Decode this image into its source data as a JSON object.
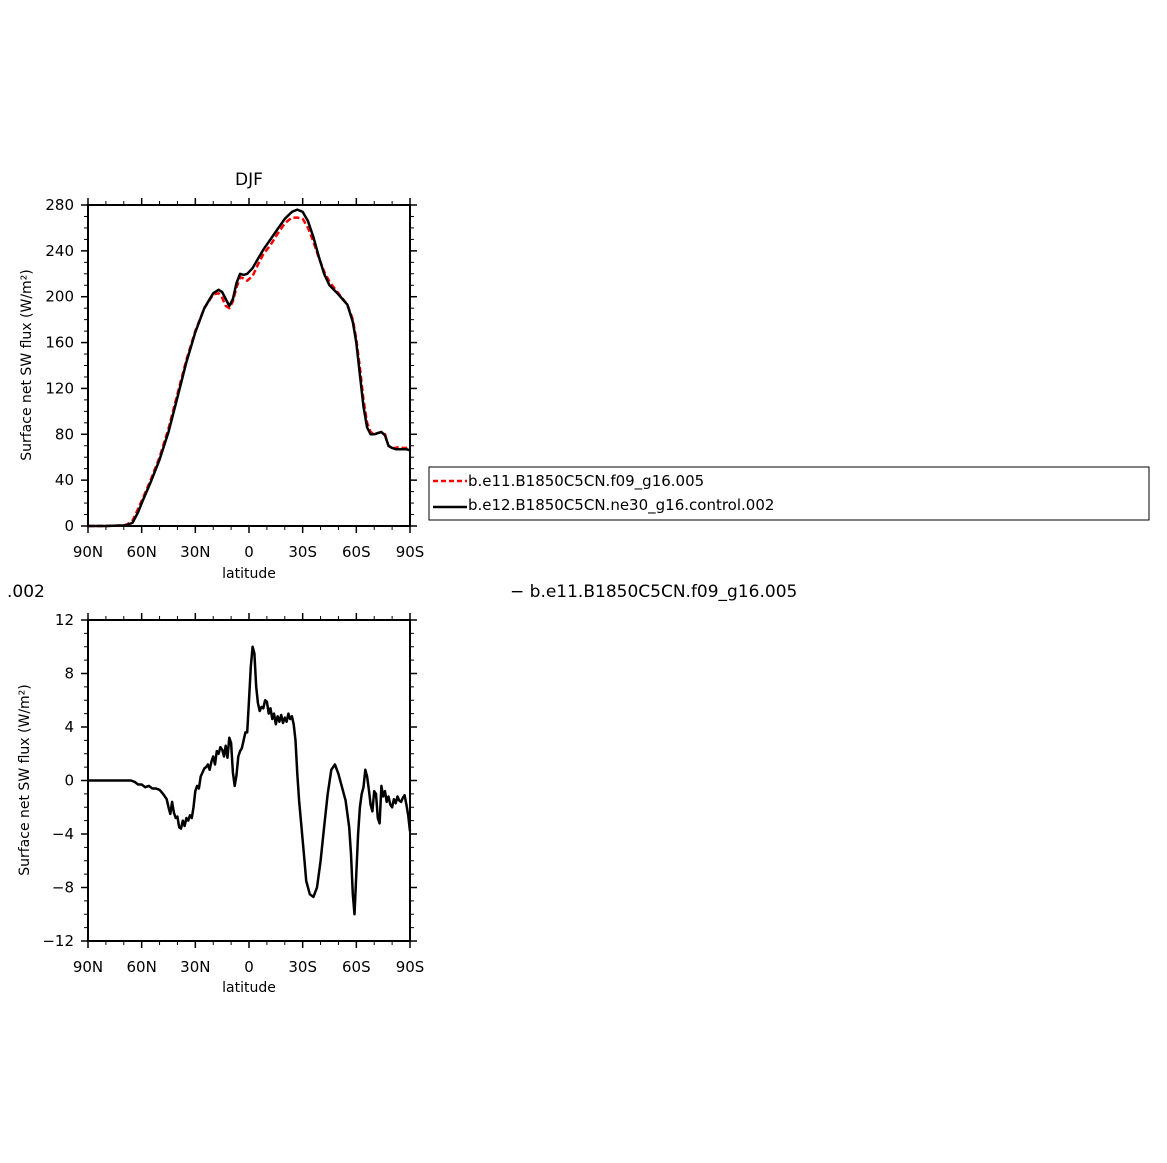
{
  "chart_data": [
    {
      "type": "line",
      "title": "DJF",
      "xlabel": "latitude",
      "ylabel": "Surface net SW flux (W/m²)",
      "xlim": [
        90,
        -90
      ],
      "ylim": [
        0,
        280
      ],
      "xticks": [
        90,
        60,
        30,
        0,
        -30,
        -60,
        -90
      ],
      "xtick_labels": [
        "90N",
        "60N",
        "30N",
        "0",
        "30S",
        "60S",
        "90S"
      ],
      "yticks": [
        0,
        40,
        80,
        120,
        160,
        200,
        240,
        280
      ],
      "ytick_labels": [
        "0",
        "40",
        "80",
        "120",
        "160",
        "200",
        "240",
        "280"
      ],
      "legend_position": "right, outside plot",
      "series": [
        {
          "name": "b.e11.B1850C5CN.f09_g16.005",
          "color": "#ff0000",
          "dashed": true,
          "x": [
            90,
            80,
            70,
            68,
            65,
            62,
            60,
            55,
            50,
            45,
            40,
            35,
            30,
            25,
            20,
            17,
            15,
            13,
            11,
            9,
            7,
            5,
            3,
            1,
            -2,
            -5,
            -8,
            -12,
            -16,
            -20,
            -24,
            -27,
            -30,
            -33,
            -36,
            -39,
            -42,
            -45,
            -50,
            -55,
            -58,
            -60,
            -62,
            -64,
            -66,
            -68,
            -70,
            -72,
            -74,
            -76,
            -78,
            -80,
            -82,
            -84,
            -86,
            -88,
            -90
          ],
          "y": [
            0,
            0,
            0.5,
            1.5,
            5,
            15,
            22,
            40,
            60,
            85,
            115,
            145,
            170,
            190,
            202,
            203,
            199,
            192,
            190,
            196,
            208,
            217,
            216,
            214,
            218,
            228,
            237,
            245,
            255,
            264,
            269,
            269,
            268,
            260,
            248,
            234,
            222,
            213,
            203,
            193,
            180,
            163,
            138,
            110,
            90,
            82,
            80,
            81,
            82,
            80,
            70,
            68,
            68,
            69,
            68,
            68,
            69
          ]
        },
        {
          "name": "b.e12.B1850C5CN.ne30_g16.control.002",
          "color": "#000000",
          "dashed": false,
          "x": [
            90,
            80,
            70,
            68,
            65,
            62,
            60,
            55,
            50,
            45,
            40,
            35,
            30,
            25,
            20,
            17,
            15,
            13,
            11,
            9,
            7,
            5,
            3,
            1,
            -2,
            -5,
            -8,
            -12,
            -16,
            -20,
            -24,
            -27,
            -30,
            -33,
            -36,
            -39,
            -42,
            -45,
            -50,
            -55,
            -58,
            -60,
            -62,
            -64,
            -66,
            -68,
            -70,
            -72,
            -74,
            -76,
            -78,
            -80,
            -82,
            -84,
            -86,
            -88,
            -90
          ],
          "y": [
            0,
            0,
            0.5,
            1,
            3,
            12,
            20,
            38,
            58,
            82,
            112,
            143,
            169,
            190,
            203,
            206,
            204,
            198,
            192,
            198,
            212,
            220,
            219,
            220,
            225,
            233,
            241,
            250,
            259,
            268,
            274,
            276,
            274,
            266,
            252,
            235,
            220,
            210,
            202,
            193,
            178,
            160,
            132,
            104,
            86,
            80,
            80,
            81,
            82,
            79,
            70,
            68,
            67,
            67,
            67,
            67,
            66
          ]
        }
      ]
    },
    {
      "type": "line",
      "title": "",
      "xlabel": "latitude",
      "ylabel": "Surface net SW flux (W/m²)",
      "xlim": [
        90,
        -90
      ],
      "ylim": [
        -12,
        12
      ],
      "xticks": [
        90,
        60,
        30,
        0,
        -30,
        -60,
        -90
      ],
      "xtick_labels": [
        "90N",
        "60N",
        "30N",
        "0",
        "30S",
        "60S",
        "90S"
      ],
      "yticks": [
        -12,
        -8,
        -4,
        0,
        4,
        8,
        12
      ],
      "ytick_labels": [
        "−12",
        "−8",
        "−4",
        "0",
        "4",
        "8",
        "12"
      ],
      "series": [
        {
          "name": "",
          "color": "#000000",
          "dashed": false,
          "x": [
            90,
            80,
            70,
            66,
            64,
            62,
            60,
            58,
            56,
            54,
            52,
            50,
            48,
            46,
            45,
            44,
            43,
            42,
            41,
            40,
            39,
            38,
            37,
            36,
            35,
            34,
            33,
            32,
            31,
            30,
            29,
            28,
            27,
            26,
            25,
            24,
            23,
            22,
            21,
            20,
            19,
            18,
            17,
            16,
            15,
            14,
            13,
            12,
            11,
            10,
            9,
            8,
            7,
            6,
            5,
            4,
            3,
            2,
            1,
            0,
            -1,
            -2,
            -3,
            -4,
            -5,
            -6,
            -7,
            -8,
            -9,
            -10,
            -11,
            -12,
            -13,
            -14,
            -15,
            -16,
            -17,
            -18,
            -19,
            -20,
            -21,
            -22,
            -23,
            -24,
            -25,
            -26,
            -27,
            -28,
            -29,
            -30,
            -31,
            -32,
            -34,
            -36,
            -38,
            -40,
            -42,
            -44,
            -46,
            -48,
            -50,
            -52,
            -54,
            -55,
            -56,
            -57,
            -58,
            -59,
            -60,
            -61,
            -62,
            -63,
            -64,
            -65,
            -66,
            -67,
            -68,
            -69,
            -70,
            -71,
            -72,
            -73,
            -74,
            -75,
            -76,
            -77,
            -78,
            -79,
            -80,
            -81,
            -82,
            -83,
            -84,
            -85,
            -86,
            -87,
            -88,
            -89,
            -90
          ],
          "y": [
            0,
            0,
            0,
            0,
            -0.1,
            -0.3,
            -0.3,
            -0.5,
            -0.4,
            -0.6,
            -0.6,
            -0.7,
            -1.0,
            -1.4,
            -2.0,
            -2.5,
            -1.6,
            -2.4,
            -2.8,
            -2.7,
            -3.5,
            -3.6,
            -3.0,
            -3.4,
            -2.8,
            -3.0,
            -2.6,
            -2.8,
            -2.0,
            -0.8,
            -0.4,
            -0.6,
            0.3,
            0.6,
            0.9,
            1.0,
            1.2,
            0.8,
            1.4,
            1.8,
            1.2,
            2.2,
            2.0,
            2.5,
            2.3,
            1.8,
            2.6,
            1.7,
            3.2,
            2.8,
            0.6,
            -0.4,
            0.4,
            1.8,
            2.2,
            2.4,
            3.0,
            3.6,
            3.6,
            6.0,
            8.5,
            10.0,
            9.5,
            7.0,
            5.8,
            5.2,
            5.5,
            5.4,
            6.0,
            5.9,
            5.0,
            5.4,
            4.6,
            5.0,
            4.2,
            4.8,
            4.4,
            4.9,
            4.3,
            4.7,
            4.4,
            5.0,
            4.6,
            4.8,
            4.2,
            3.0,
            0.5,
            -1.5,
            -3.0,
            -4.5,
            -6.0,
            -7.5,
            -8.5,
            -8.7,
            -8.0,
            -6.0,
            -3.5,
            -1.0,
            0.8,
            1.2,
            0.5,
            -0.5,
            -1.5,
            -2.5,
            -3.5,
            -5.5,
            -8.5,
            -10.0,
            -7.0,
            -4.0,
            -2.0,
            -1.0,
            -0.5,
            0.8,
            0.3,
            -0.7,
            -1.8,
            -2.3,
            -0.8,
            -1.0,
            -2.8,
            -3.2,
            -0.4,
            -1.2,
            -0.8,
            -1.6,
            -1.2,
            -1.8,
            -2.0,
            -1.4,
            -1.7,
            -1.2,
            -1.5,
            -1.6,
            -1.3,
            -1.1,
            -1.8,
            -2.6,
            -3.8
          ]
        }
      ]
    }
  ],
  "legend": {
    "entries": [
      "b.e11.B1850C5CN.f09_g16.005",
      "b.e12.B1850C5CN.ne30_g16.control.002"
    ]
  },
  "subtitles": {
    "left": ".002",
    "right": "− b.e11.B1850C5CN.f09_g16.005"
  }
}
